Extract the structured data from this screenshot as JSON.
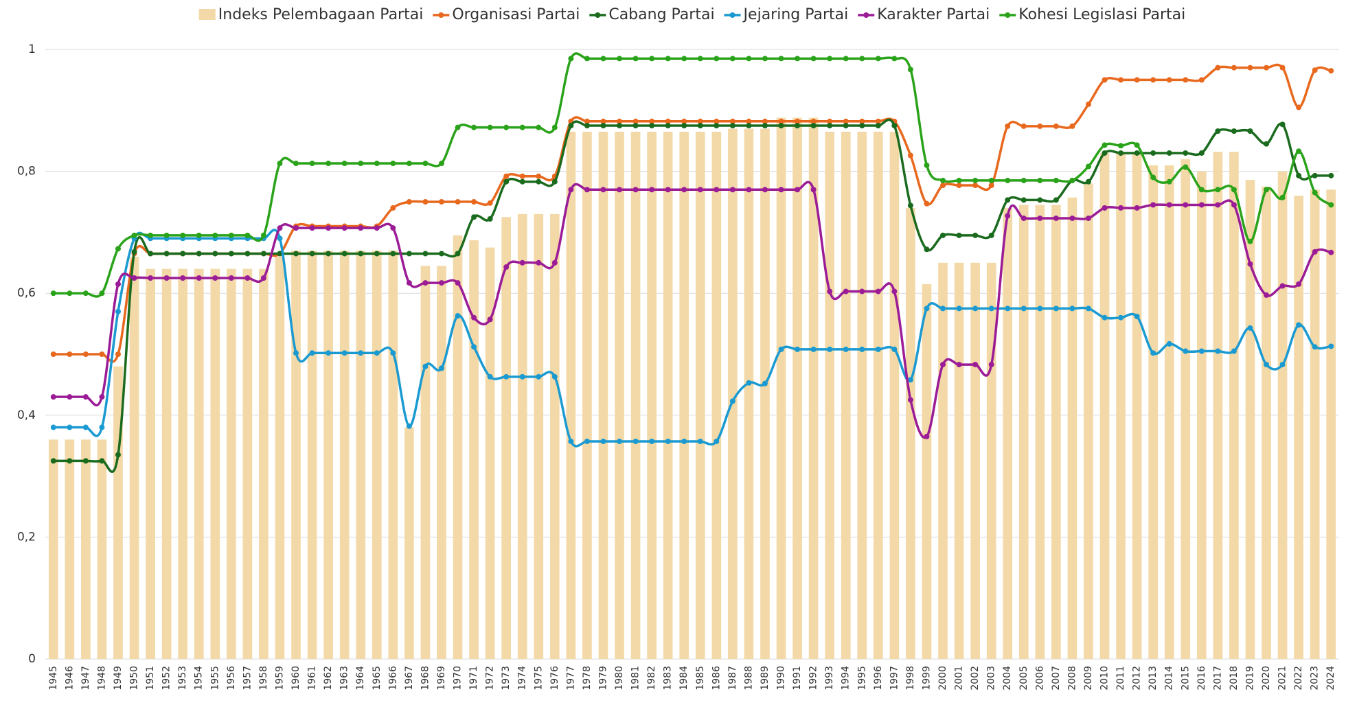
{
  "chart_data": {
    "type": "bar",
    "legend": "top",
    "grid": true,
    "categories": [
      "1945",
      "1946",
      "1947",
      "1948",
      "1949",
      "1950",
      "1951",
      "1952",
      "1953",
      "1954",
      "1955",
      "1956",
      "1957",
      "1958",
      "1959",
      "1960",
      "1961",
      "1962",
      "1963",
      "1964",
      "1965",
      "1966",
      "1967",
      "1968",
      "1969",
      "1970",
      "1971",
      "1972",
      "1973",
      "1974",
      "1975",
      "1976",
      "1977",
      "1978",
      "1979",
      "1980",
      "1981",
      "1982",
      "1983",
      "1984",
      "1985",
      "1986",
      "1987",
      "1988",
      "1989",
      "1990",
      "1991",
      "1992",
      "1993",
      "1994",
      "1995",
      "1996",
      "1997",
      "1998",
      "1999",
      "2000",
      "2001",
      "2002",
      "2003",
      "2004",
      "2005",
      "2006",
      "2007",
      "2008",
      "2009",
      "2010",
      "2011",
      "2012",
      "2013",
      "2014",
      "2015",
      "2016",
      "2017",
      "2018",
      "2019",
      "2020",
      "2021",
      "2022",
      "2023",
      "2024"
    ],
    "ylim": [
      0,
      1
    ],
    "yticks": [
      0,
      {
        "value": 0.2,
        "label": "0,2"
      },
      {
        "value": 0.4,
        "label": "0,4"
      },
      {
        "value": 0.6,
        "label": "0,6"
      },
      {
        "value": 0.8,
        "label": "0,8"
      },
      1
    ],
    "series": [
      {
        "name": "Indeks Pelembagaan Partai",
        "type": "bar",
        "color": "#f3d9a8",
        "values": [
          0.36,
          0.36,
          0.36,
          0.36,
          0.48,
          0.66,
          0.64,
          0.64,
          0.64,
          0.64,
          0.64,
          0.64,
          0.64,
          0.64,
          0.66,
          0.67,
          0.67,
          0.67,
          0.67,
          0.67,
          0.67,
          0.67,
          0.38,
          0.645,
          0.645,
          0.695,
          0.687,
          0.675,
          0.725,
          0.73,
          0.73,
          0.73,
          0.865,
          0.865,
          0.865,
          0.865,
          0.865,
          0.865,
          0.865,
          0.865,
          0.865,
          0.865,
          0.87,
          0.87,
          0.87,
          0.888,
          0.888,
          0.888,
          0.865,
          0.865,
          0.865,
          0.865,
          0.865,
          0.74,
          0.615,
          0.65,
          0.65,
          0.65,
          0.65,
          0.74,
          0.745,
          0.745,
          0.745,
          0.757,
          0.78,
          0.83,
          0.83,
          0.83,
          0.81,
          0.81,
          0.82,
          0.8,
          0.832,
          0.832,
          0.786,
          0.775,
          0.8,
          0.76,
          0.77,
          0.77
        ]
      },
      {
        "name": "Organisasi Partai",
        "type": "line",
        "color": "#e8681e",
        "values": [
          0.5,
          0.5,
          0.5,
          0.5,
          0.5,
          0.665,
          0.665,
          0.665,
          0.665,
          0.665,
          0.665,
          0.665,
          0.665,
          0.665,
          0.665,
          0.71,
          0.71,
          0.71,
          0.71,
          0.71,
          0.71,
          0.74,
          0.75,
          0.75,
          0.75,
          0.75,
          0.75,
          0.748,
          0.792,
          0.792,
          0.792,
          0.792,
          0.882,
          0.882,
          0.882,
          0.882,
          0.882,
          0.882,
          0.882,
          0.882,
          0.882,
          0.882,
          0.882,
          0.882,
          0.882,
          0.882,
          0.882,
          0.882,
          0.882,
          0.882,
          0.882,
          0.882,
          0.882,
          0.826,
          0.747,
          0.777,
          0.777,
          0.777,
          0.777,
          0.874,
          0.874,
          0.874,
          0.874,
          0.874,
          0.91,
          0.95,
          0.95,
          0.95,
          0.95,
          0.95,
          0.95,
          0.95,
          0.97,
          0.97,
          0.97,
          0.97,
          0.97,
          0.905,
          0.966,
          0.965
        ]
      },
      {
        "name": "Cabang Partai",
        "type": "line",
        "color": "#1a6b1e",
        "values": [
          0.325,
          0.325,
          0.325,
          0.325,
          0.335,
          0.668,
          0.665,
          0.665,
          0.665,
          0.665,
          0.665,
          0.665,
          0.665,
          0.665,
          0.665,
          0.665,
          0.665,
          0.665,
          0.665,
          0.665,
          0.665,
          0.665,
          0.665,
          0.665,
          0.665,
          0.665,
          0.725,
          0.722,
          0.783,
          0.783,
          0.783,
          0.783,
          0.875,
          0.875,
          0.875,
          0.875,
          0.875,
          0.875,
          0.875,
          0.875,
          0.875,
          0.875,
          0.875,
          0.875,
          0.875,
          0.875,
          0.875,
          0.875,
          0.875,
          0.875,
          0.875,
          0.875,
          0.875,
          0.744,
          0.672,
          0.695,
          0.695,
          0.695,
          0.695,
          0.753,
          0.753,
          0.753,
          0.753,
          0.785,
          0.783,
          0.83,
          0.83,
          0.83,
          0.83,
          0.83,
          0.83,
          0.83,
          0.866,
          0.866,
          0.866,
          0.845,
          0.877,
          0.793,
          0.793,
          0.793
        ]
      },
      {
        "name": "Jejaring Partai",
        "type": "line",
        "color": "#1a9ad1",
        "values": [
          0.38,
          0.38,
          0.38,
          0.38,
          0.57,
          0.69,
          0.69,
          0.69,
          0.69,
          0.69,
          0.69,
          0.69,
          0.69,
          0.69,
          0.69,
          0.502,
          0.502,
          0.502,
          0.502,
          0.502,
          0.502,
          0.502,
          0.382,
          0.48,
          0.477,
          0.563,
          0.512,
          0.463,
          0.463,
          0.463,
          0.463,
          0.463,
          0.357,
          0.357,
          0.357,
          0.357,
          0.357,
          0.357,
          0.357,
          0.357,
          0.357,
          0.357,
          0.423,
          0.453,
          0.452,
          0.508,
          0.508,
          0.508,
          0.508,
          0.508,
          0.508,
          0.508,
          0.508,
          0.458,
          0.575,
          0.575,
          0.575,
          0.575,
          0.575,
          0.575,
          0.575,
          0.575,
          0.575,
          0.575,
          0.575,
          0.56,
          0.56,
          0.562,
          0.502,
          0.517,
          0.505,
          0.505,
          0.505,
          0.505,
          0.543,
          0.483,
          0.483,
          0.548,
          0.512,
          0.513
        ]
      },
      {
        "name": "Karakter Partai",
        "type": "line",
        "color": "#9b1c96",
        "values": [
          0.43,
          0.43,
          0.43,
          0.43,
          0.615,
          0.625,
          0.625,
          0.625,
          0.625,
          0.625,
          0.625,
          0.625,
          0.625,
          0.625,
          0.707,
          0.707,
          0.707,
          0.707,
          0.707,
          0.707,
          0.707,
          0.707,
          0.617,
          0.617,
          0.617,
          0.617,
          0.56,
          0.557,
          0.643,
          0.65,
          0.65,
          0.65,
          0.77,
          0.77,
          0.77,
          0.77,
          0.77,
          0.77,
          0.77,
          0.77,
          0.77,
          0.77,
          0.77,
          0.77,
          0.77,
          0.77,
          0.77,
          0.77,
          0.603,
          0.603,
          0.603,
          0.603,
          0.603,
          0.425,
          0.365,
          0.483,
          0.483,
          0.483,
          0.483,
          0.727,
          0.723,
          0.723,
          0.723,
          0.723,
          0.723,
          0.74,
          0.74,
          0.74,
          0.745,
          0.745,
          0.745,
          0.745,
          0.745,
          0.745,
          0.648,
          0.597,
          0.612,
          0.615,
          0.668,
          0.667
        ]
      },
      {
        "name": "Kohesi Legislasi Partai",
        "type": "line",
        "color": "#2aa31a",
        "values": [
          0.6,
          0.6,
          0.6,
          0.6,
          0.673,
          0.695,
          0.695,
          0.695,
          0.695,
          0.695,
          0.695,
          0.695,
          0.695,
          0.695,
          0.813,
          0.813,
          0.813,
          0.813,
          0.813,
          0.813,
          0.813,
          0.813,
          0.813,
          0.813,
          0.813,
          0.872,
          0.872,
          0.872,
          0.872,
          0.872,
          0.872,
          0.872,
          0.985,
          0.985,
          0.985,
          0.985,
          0.985,
          0.985,
          0.985,
          0.985,
          0.985,
          0.985,
          0.985,
          0.985,
          0.985,
          0.985,
          0.985,
          0.985,
          0.985,
          0.985,
          0.985,
          0.985,
          0.985,
          0.967,
          0.81,
          0.785,
          0.785,
          0.785,
          0.785,
          0.785,
          0.785,
          0.785,
          0.785,
          0.785,
          0.808,
          0.843,
          0.842,
          0.843,
          0.79,
          0.783,
          0.807,
          0.77,
          0.77,
          0.77,
          0.685,
          0.77,
          0.757,
          0.833,
          0.765,
          0.745
        ]
      }
    ]
  }
}
